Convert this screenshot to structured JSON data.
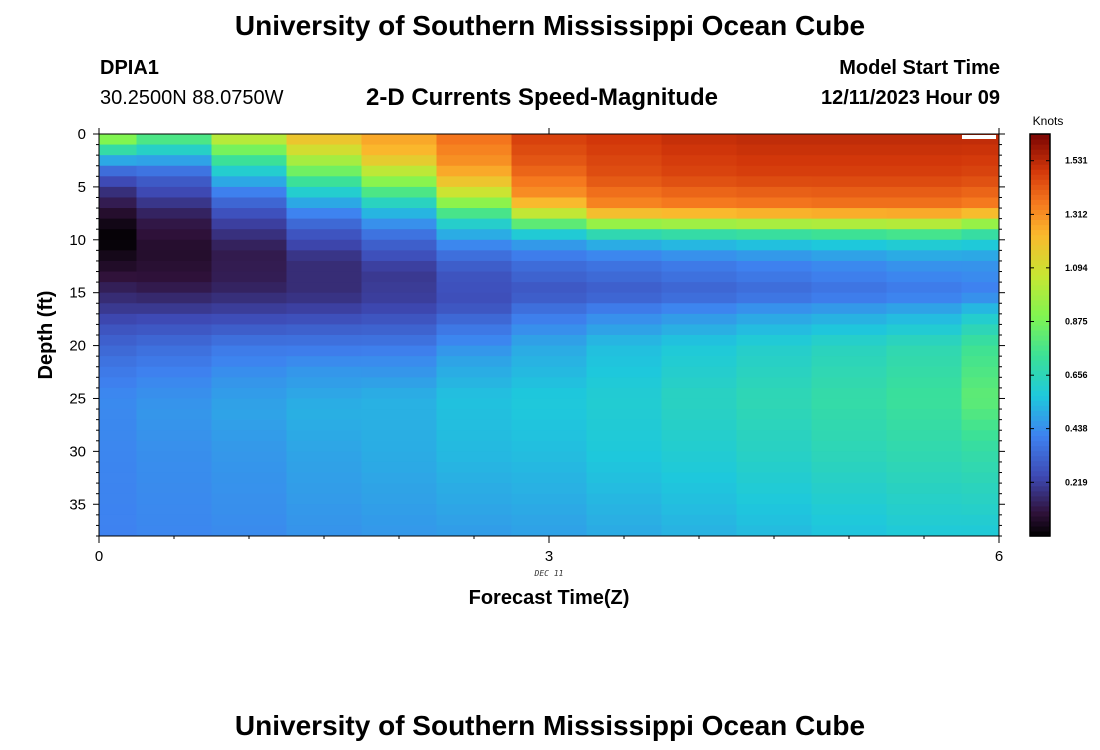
{
  "header": {
    "title_top": "University of Southern Mississippi Ocean Cube",
    "station": "DPIA1",
    "coords": "30.2500N  88.0750W",
    "plot_title": "2-D Currents Speed-Magnitude",
    "model_label": "Model Start Time",
    "model_time": "12/11/2023 Hour 09",
    "title_bottom": "University of Southern Mississippi Ocean Cube"
  },
  "chart_data": {
    "type": "heatmap",
    "title": "2-D Currents Speed-Magnitude",
    "xlabel": "Forecast Time(Z)",
    "ylabel": "Depth (ft)",
    "x_date_label": "DEC 11",
    "xlim": [
      0,
      6
    ],
    "ylim": [
      38,
      0
    ],
    "x_ticks": [
      0,
      3,
      6
    ],
    "y_ticks": [
      0,
      5,
      10,
      15,
      20,
      25,
      30,
      35
    ],
    "colorbar": {
      "unit": "Knots",
      "min": 0,
      "max": 1.64,
      "ticks": [
        "0.219",
        "0.438",
        "0.656",
        "0.875",
        "1.094",
        "1.312",
        "1.531"
      ],
      "tick_values": [
        0.219,
        0.438,
        0.656,
        0.875,
        1.094,
        1.312,
        1.531
      ]
    },
    "columns": [
      {
        "x0": 0.0,
        "x1": 0.25,
        "profile": [
          [
            0,
            1.0
          ],
          [
            1,
            0.8
          ],
          [
            2,
            0.6
          ],
          [
            3,
            0.4
          ],
          [
            4,
            0.3
          ],
          [
            5,
            0.2
          ],
          [
            7,
            0.1
          ],
          [
            8,
            0.05
          ],
          [
            10,
            0.0
          ],
          [
            11,
            0.03
          ],
          [
            13,
            0.08
          ],
          [
            15,
            0.15
          ],
          [
            17,
            0.22
          ],
          [
            19,
            0.3
          ],
          [
            22,
            0.38
          ],
          [
            25,
            0.43
          ],
          [
            30,
            0.42
          ],
          [
            38,
            0.41
          ]
        ]
      },
      {
        "x0": 0.25,
        "x1": 0.75,
        "profile": [
          [
            0,
            0.85
          ],
          [
            1,
            0.7
          ],
          [
            2,
            0.55
          ],
          [
            3,
            0.42
          ],
          [
            4,
            0.32
          ],
          [
            6,
            0.22
          ],
          [
            8,
            0.12
          ],
          [
            11,
            0.07
          ],
          [
            14,
            0.1
          ],
          [
            16,
            0.18
          ],
          [
            18,
            0.27
          ],
          [
            20,
            0.35
          ],
          [
            23,
            0.42
          ],
          [
            26,
            0.46
          ],
          [
            30,
            0.44
          ],
          [
            38,
            0.42
          ]
        ]
      },
      {
        "x0": 0.75,
        "x1": 1.25,
        "profile": [
          [
            0,
            1.1
          ],
          [
            1,
            0.95
          ],
          [
            2,
            0.8
          ],
          [
            3,
            0.66
          ],
          [
            4,
            0.55
          ],
          [
            5,
            0.45
          ],
          [
            6,
            0.36
          ],
          [
            8,
            0.24
          ],
          [
            11,
            0.12
          ],
          [
            14,
            0.13
          ],
          [
            16,
            0.19
          ],
          [
            18,
            0.28
          ],
          [
            20,
            0.38
          ],
          [
            23,
            0.45
          ],
          [
            26,
            0.49
          ],
          [
            30,
            0.46
          ],
          [
            38,
            0.43
          ]
        ]
      },
      {
        "x0": 1.25,
        "x1": 1.75,
        "profile": [
          [
            0,
            1.22
          ],
          [
            1,
            1.15
          ],
          [
            2,
            1.05
          ],
          [
            3,
            0.92
          ],
          [
            4,
            0.8
          ],
          [
            5,
            0.66
          ],
          [
            6,
            0.55
          ],
          [
            7,
            0.45
          ],
          [
            9,
            0.3
          ],
          [
            12,
            0.17
          ],
          [
            15,
            0.17
          ],
          [
            17,
            0.24
          ],
          [
            19,
            0.34
          ],
          [
            22,
            0.45
          ],
          [
            26,
            0.52
          ],
          [
            30,
            0.49
          ],
          [
            38,
            0.45
          ]
        ]
      },
      {
        "x0": 1.75,
        "x1": 2.25,
        "profile": [
          [
            0,
            1.28
          ],
          [
            2,
            1.22
          ],
          [
            3,
            1.1
          ],
          [
            4,
            0.98
          ],
          [
            5,
            0.85
          ],
          [
            6,
            0.7
          ],
          [
            7,
            0.58
          ],
          [
            8,
            0.48
          ],
          [
            10,
            0.33
          ],
          [
            13,
            0.2
          ],
          [
            16,
            0.22
          ],
          [
            18,
            0.3
          ],
          [
            21,
            0.42
          ],
          [
            25,
            0.52
          ],
          [
            30,
            0.51
          ],
          [
            38,
            0.46
          ]
        ]
      },
      {
        "x0": 2.25,
        "x1": 2.75,
        "profile": [
          [
            0,
            1.38
          ],
          [
            3,
            1.3
          ],
          [
            5,
            1.15
          ],
          [
            6,
            1.0
          ],
          [
            7,
            0.85
          ],
          [
            8,
            0.68
          ],
          [
            9,
            0.55
          ],
          [
            11,
            0.38
          ],
          [
            13,
            0.28
          ],
          [
            16,
            0.26
          ],
          [
            18,
            0.36
          ],
          [
            21,
            0.48
          ],
          [
            25,
            0.56
          ],
          [
            30,
            0.54
          ],
          [
            38,
            0.47
          ]
        ]
      },
      {
        "x0": 2.75,
        "x1": 3.25,
        "profile": [
          [
            0,
            1.48
          ],
          [
            3,
            1.42
          ],
          [
            6,
            1.3
          ],
          [
            7,
            1.15
          ],
          [
            8,
            0.95
          ],
          [
            9,
            0.68
          ],
          [
            10,
            0.5
          ],
          [
            12,
            0.36
          ],
          [
            15,
            0.28
          ],
          [
            17,
            0.38
          ],
          [
            20,
            0.5
          ],
          [
            25,
            0.58
          ],
          [
            30,
            0.55
          ],
          [
            38,
            0.48
          ]
        ]
      },
      {
        "x0": 3.25,
        "x1": 3.75,
        "profile": [
          [
            0,
            1.5
          ],
          [
            4,
            1.44
          ],
          [
            7,
            1.32
          ],
          [
            8,
            1.1
          ],
          [
            9,
            0.8
          ],
          [
            10,
            0.55
          ],
          [
            12,
            0.38
          ],
          [
            15,
            0.3
          ],
          [
            17,
            0.42
          ],
          [
            20,
            0.55
          ],
          [
            25,
            0.6
          ],
          [
            30,
            0.58
          ],
          [
            38,
            0.5
          ]
        ]
      },
      {
        "x0": 3.75,
        "x1": 4.25,
        "profile": [
          [
            0,
            1.52
          ],
          [
            4,
            1.46
          ],
          [
            7,
            1.34
          ],
          [
            8,
            1.12
          ],
          [
            9,
            0.82
          ],
          [
            10,
            0.58
          ],
          [
            12,
            0.4
          ],
          [
            15,
            0.32
          ],
          [
            17,
            0.45
          ],
          [
            20,
            0.58
          ],
          [
            25,
            0.64
          ],
          [
            30,
            0.6
          ],
          [
            38,
            0.52
          ]
        ]
      },
      {
        "x0": 4.25,
        "x1": 4.75,
        "profile": [
          [
            0,
            1.53
          ],
          [
            4,
            1.47
          ],
          [
            7,
            1.35
          ],
          [
            8,
            1.14
          ],
          [
            9,
            0.84
          ],
          [
            10,
            0.6
          ],
          [
            12,
            0.42
          ],
          [
            15,
            0.34
          ],
          [
            17,
            0.48
          ],
          [
            20,
            0.61
          ],
          [
            25,
            0.67
          ],
          [
            30,
            0.63
          ],
          [
            38,
            0.54
          ]
        ]
      },
      {
        "x0": 4.75,
        "x1": 5.25,
        "profile": [
          [
            0,
            1.53
          ],
          [
            4,
            1.47
          ],
          [
            7,
            1.36
          ],
          [
            8,
            1.15
          ],
          [
            9,
            0.86
          ],
          [
            10,
            0.62
          ],
          [
            12,
            0.44
          ],
          [
            15,
            0.36
          ],
          [
            17,
            0.5
          ],
          [
            20,
            0.64
          ],
          [
            25,
            0.7
          ],
          [
            30,
            0.66
          ],
          [
            38,
            0.56
          ]
        ]
      },
      {
        "x0": 5.25,
        "x1": 5.75,
        "profile": [
          [
            0,
            1.53
          ],
          [
            4,
            1.47
          ],
          [
            7,
            1.36
          ],
          [
            8,
            1.16
          ],
          [
            9,
            0.88
          ],
          [
            10,
            0.64
          ],
          [
            12,
            0.46
          ],
          [
            15,
            0.38
          ],
          [
            17,
            0.52
          ],
          [
            20,
            0.67
          ],
          [
            25,
            0.73
          ],
          [
            30,
            0.68
          ],
          [
            38,
            0.58
          ]
        ]
      },
      {
        "x0": 5.75,
        "x1": 6.0,
        "profile": [
          [
            0,
            1.53
          ],
          [
            4,
            1.46
          ],
          [
            7,
            1.34
          ],
          [
            8,
            1.1
          ],
          [
            9,
            0.8
          ],
          [
            10,
            0.62
          ],
          [
            12,
            0.46
          ],
          [
            15,
            0.4
          ],
          [
            17,
            0.58
          ],
          [
            20,
            0.74
          ],
          [
            25,
            0.82
          ],
          [
            30,
            0.7
          ],
          [
            38,
            0.58
          ]
        ]
      }
    ]
  }
}
